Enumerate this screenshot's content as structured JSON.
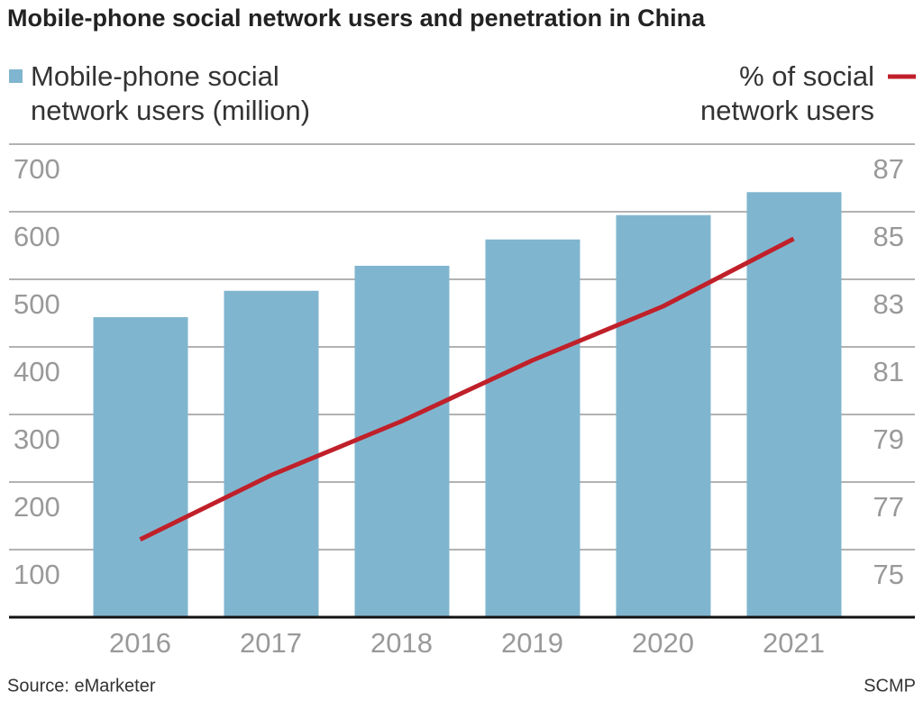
{
  "chart_data": {
    "type": "bar",
    "title": "Mobile-phone social network users and penetration in China",
    "categories": [
      "2016",
      "2017",
      "2018",
      "2019",
      "2020",
      "2021"
    ],
    "series": [
      {
        "name": "Mobile-phone social network users (million)",
        "type": "bar",
        "color": "#80b5cf",
        "values": [
          444,
          483,
          520,
          559,
          595,
          629
        ]
      },
      {
        "name": "% of social network users",
        "type": "line",
        "axis": "y2",
        "color": "#c0202a",
        "values": [
          75.3,
          77.2,
          78.8,
          80.6,
          82.2,
          84.2
        ]
      }
    ],
    "ylim": [
      0,
      700
    ],
    "yticks": [
      100,
      200,
      300,
      400,
      500,
      600,
      700
    ],
    "y2lim": [
      73,
      87
    ],
    "y2ticks": [
      75,
      77,
      79,
      81,
      83,
      85,
      87
    ],
    "grid": true,
    "source": "Source: eMarketer",
    "credit": "SCMP"
  }
}
